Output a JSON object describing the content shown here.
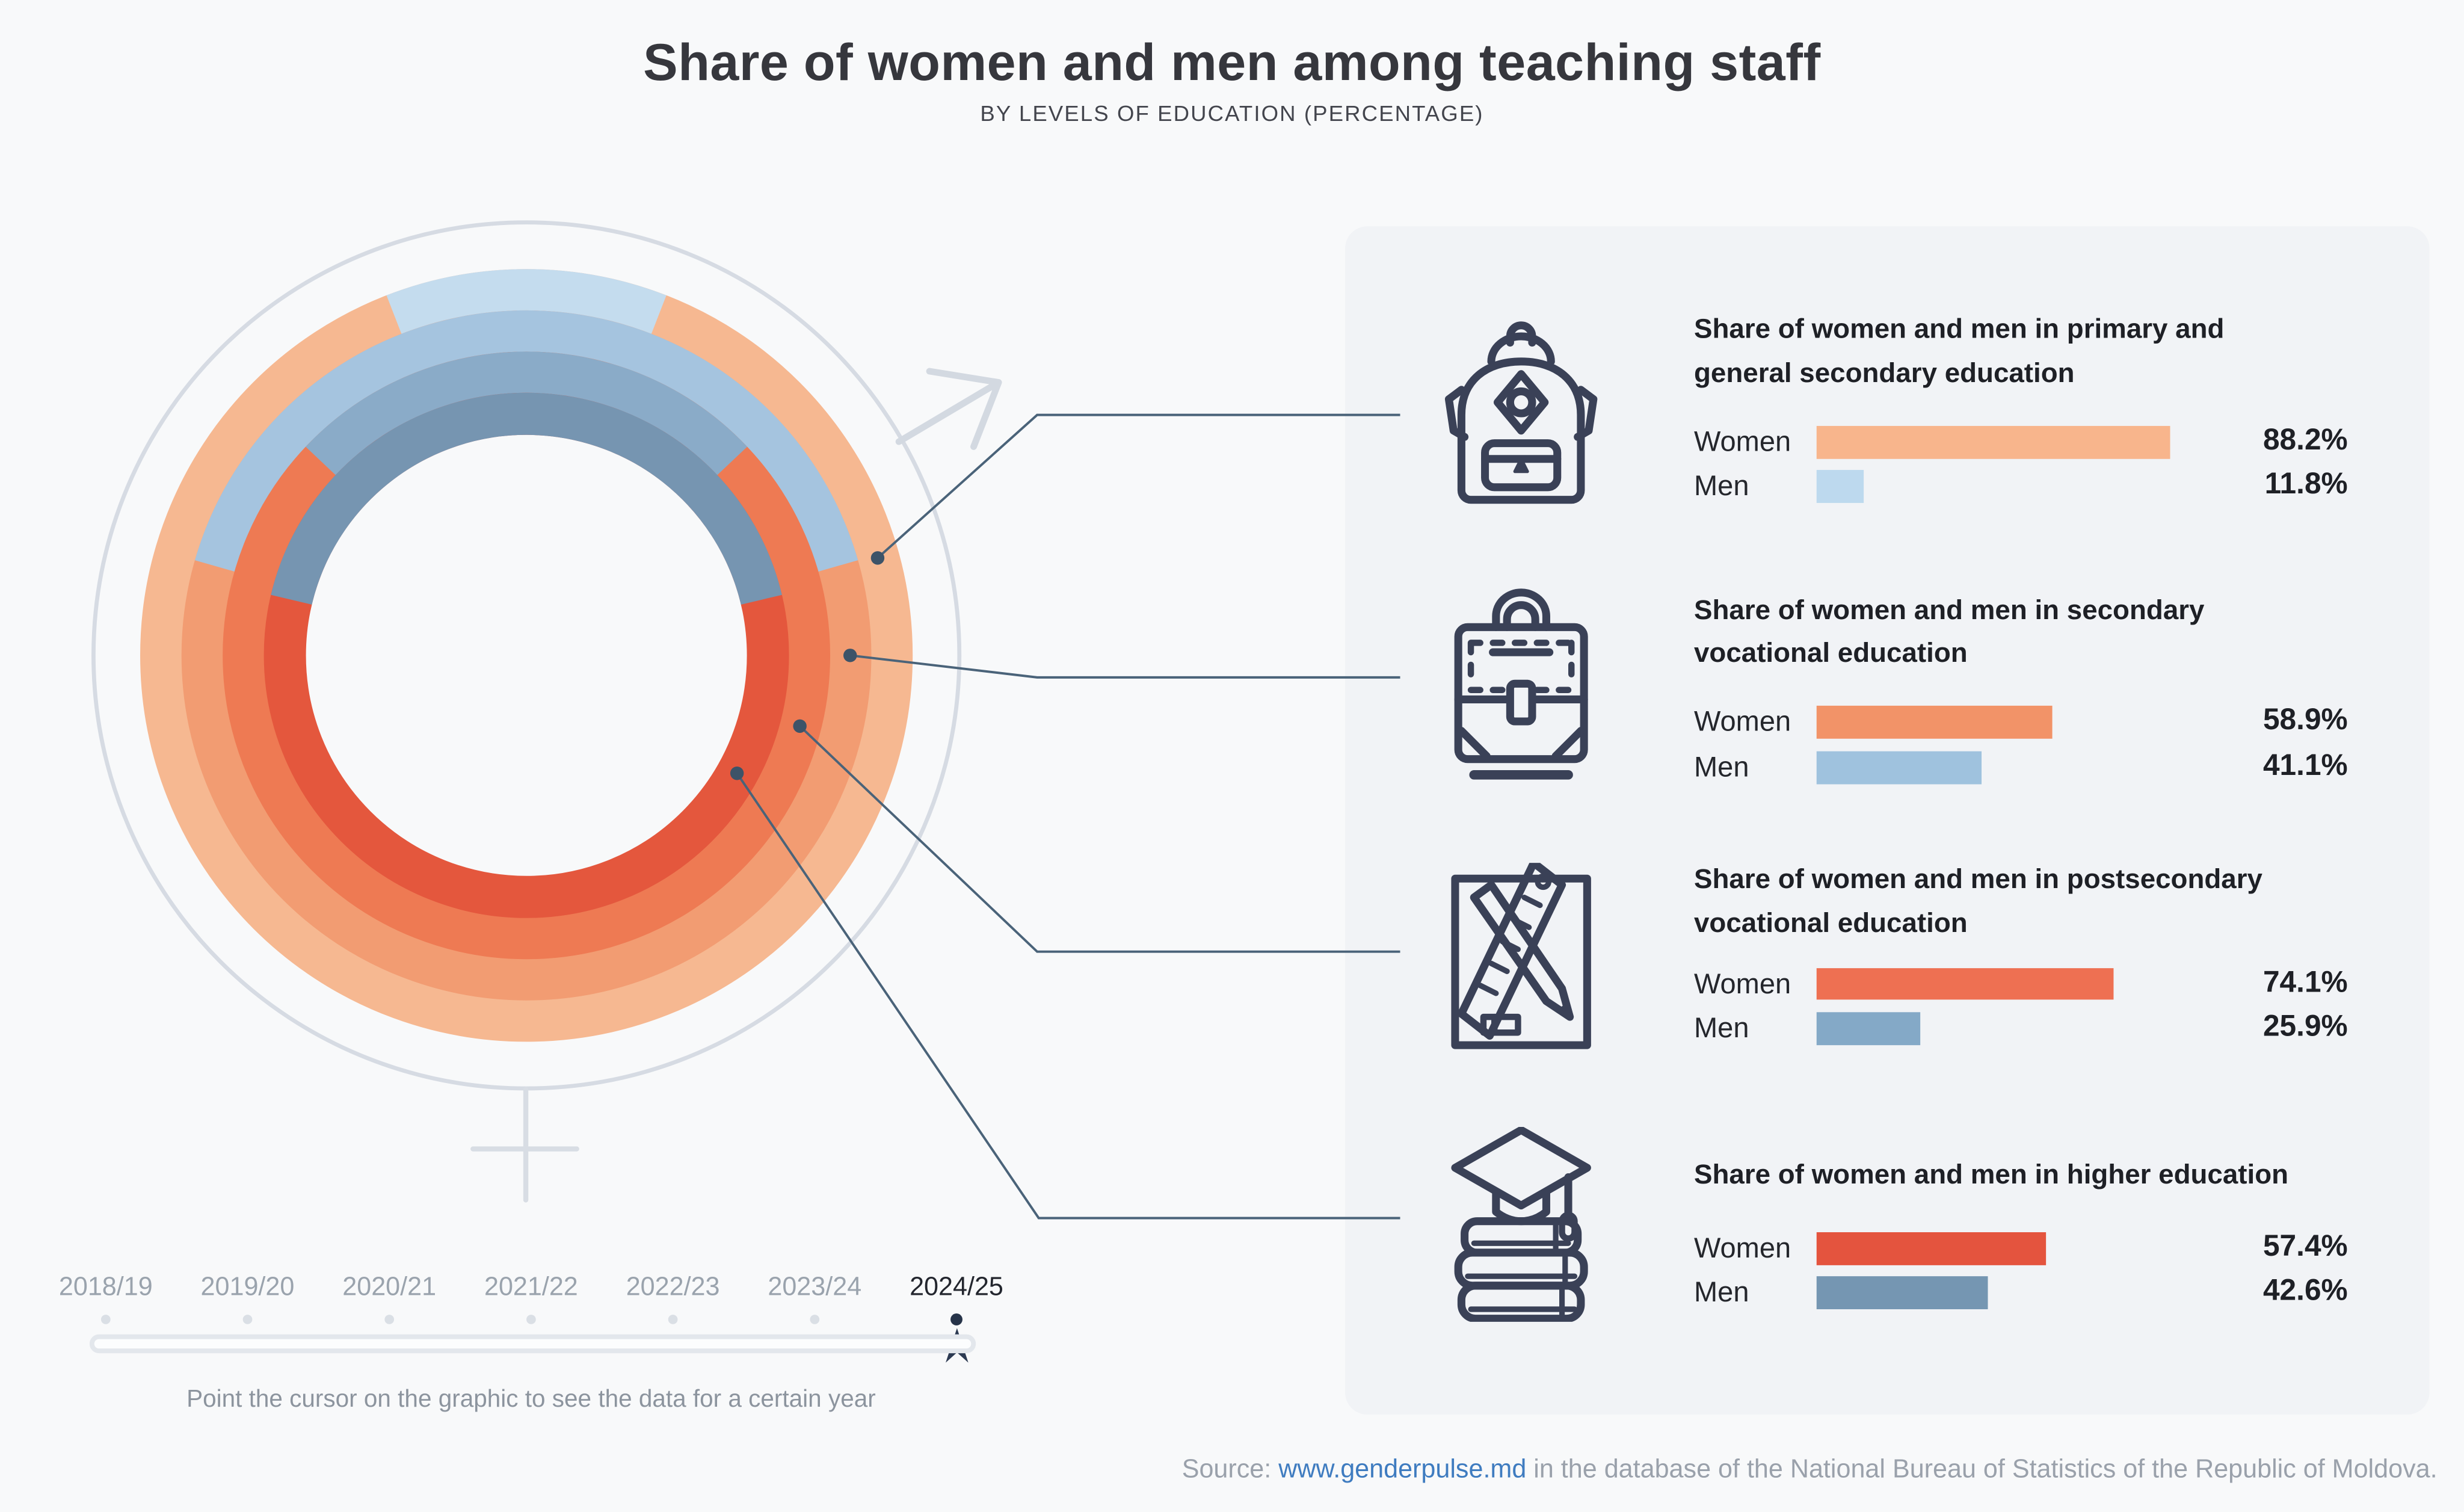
{
  "title": "Share of women and men among teaching staff",
  "subtitle": "BY LEVELS OF EDUCATION (PERCENTAGE)",
  "labels": {
    "women": "Women",
    "men": "Men"
  },
  "chart_data": {
    "type": "donut",
    "description": "Four concentric rings (outer to inner) showing women vs men share of teaching staff by education level; men segment centered at 12 o'clock; shaped as female symbol with male arrow",
    "year_shown": "2024/25",
    "rings": [
      {
        "level": "Primary and general secondary education",
        "women_pct": 88.2,
        "men_pct": 11.8,
        "women_color": "#f6b891",
        "men_color": "#c4dcee"
      },
      {
        "level": "Secondary vocational education",
        "women_pct": 58.9,
        "men_pct": 41.1,
        "women_color": "#f29c72",
        "men_color": "#a5c4df"
      },
      {
        "level": "Postsecondary vocational education",
        "women_pct": 74.1,
        "men_pct": 25.9,
        "women_color": "#ee7a53",
        "men_color": "#8aabc8"
      },
      {
        "level": "Higher education",
        "women_pct": 57.4,
        "men_pct": 42.6,
        "women_color": "#e4573d",
        "men_color": "#7695b1"
      }
    ]
  },
  "sections": [
    {
      "icon": "backpack-icon",
      "title_line1": "Share of women and men in primary and",
      "title_line2": "general secondary education",
      "women": {
        "pct": 88.2,
        "label": "88.2%",
        "color": "#f8b58c"
      },
      "men": {
        "pct": 11.8,
        "label": "11.8%",
        "color": "#bdd9ee"
      }
    },
    {
      "icon": "briefcase-icon",
      "title_line1": "Share of women and men in secondary",
      "title_line2": "vocational education",
      "women": {
        "pct": 58.9,
        "label": "58.9%",
        "color": "#f29368"
      },
      "men": {
        "pct": 41.1,
        "label": "41.1%",
        "color": "#9fc2de"
      }
    },
    {
      "icon": "pencil-ruler-icon",
      "title_line1": "Share of women and men in postsecondary",
      "title_line2": "vocational education",
      "women": {
        "pct": 74.1,
        "label": "74.1%",
        "color": "#ee7052"
      },
      "men": {
        "pct": 25.9,
        "label": "25.9%",
        "color": "#84a9c7"
      }
    },
    {
      "icon": "graduation-cap-books-icon",
      "title_line1": "Share of women and men in higher education",
      "title_line2": "",
      "women": {
        "pct": 57.4,
        "label": "57.4%",
        "color": "#e4543e"
      },
      "men": {
        "pct": 42.6,
        "label": "42.6%",
        "color": "#7596b2"
      }
    }
  ],
  "timeline": {
    "years": [
      "2018/19",
      "2019/20",
      "2020/21",
      "2021/22",
      "2022/23",
      "2023/24",
      "2024/25"
    ],
    "active": "2024/25",
    "hint": "Point the cursor on the graphic to see the data for a certain year"
  },
  "source": {
    "prefix": "Source: ",
    "link": "www.genderpulse.md",
    "suffix": " in the database of the National Bureau of Statistics of the Republic of Moldova."
  },
  "colors": {
    "background": "#f8f9fa",
    "panel": "#f1f3f6",
    "connector": "#4a6379",
    "symbol_gray": "#d6dbe3",
    "active_navy": "#2c3a52",
    "link_blue": "#3f7cc0"
  }
}
